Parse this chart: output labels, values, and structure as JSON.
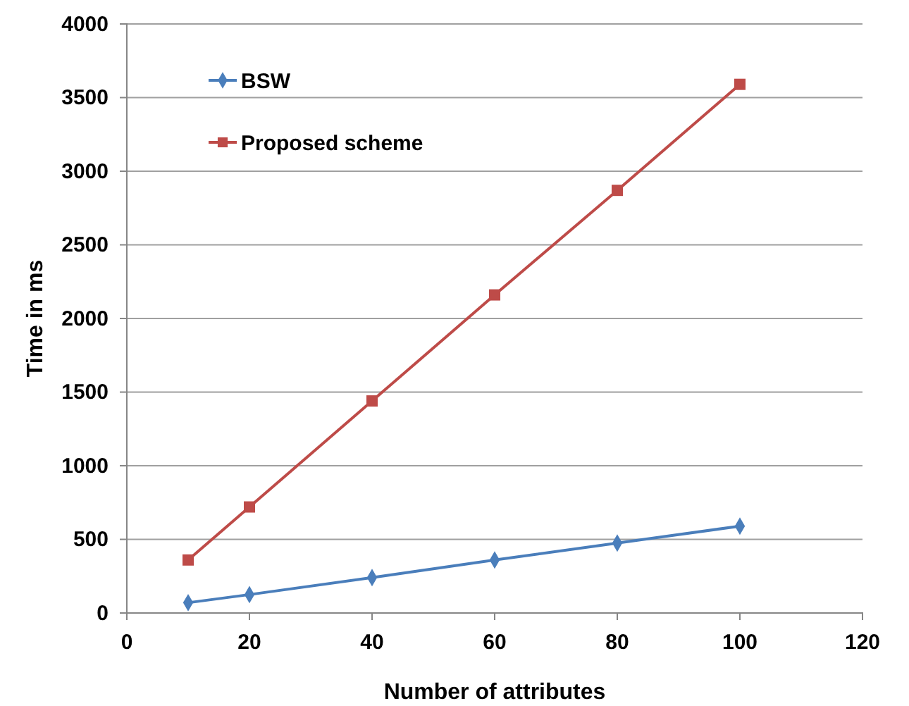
{
  "chart_data": {
    "type": "line",
    "xlabel": "Number of attributes",
    "ylabel": "Time in ms",
    "x": [
      10,
      20,
      40,
      60,
      80,
      100
    ],
    "series": [
      {
        "name": "BSW",
        "color": "#4a7ebb",
        "values": [
          70,
          125,
          240,
          360,
          475,
          590
        ],
        "marker": "diamond"
      },
      {
        "name": "Proposed scheme",
        "color": "#be4b48",
        "values": [
          360,
          720,
          1440,
          2160,
          2870,
          3590
        ],
        "marker": "square"
      }
    ],
    "xlim": [
      0,
      120
    ],
    "xticks": [
      0,
      20,
      40,
      60,
      80,
      100,
      120
    ],
    "ylim": [
      0,
      4000
    ],
    "yticks": [
      0,
      500,
      1000,
      1500,
      2000,
      2500,
      3000,
      3500,
      4000
    ],
    "grid": "y",
    "legend": "top left",
    "line_style": "solid"
  }
}
